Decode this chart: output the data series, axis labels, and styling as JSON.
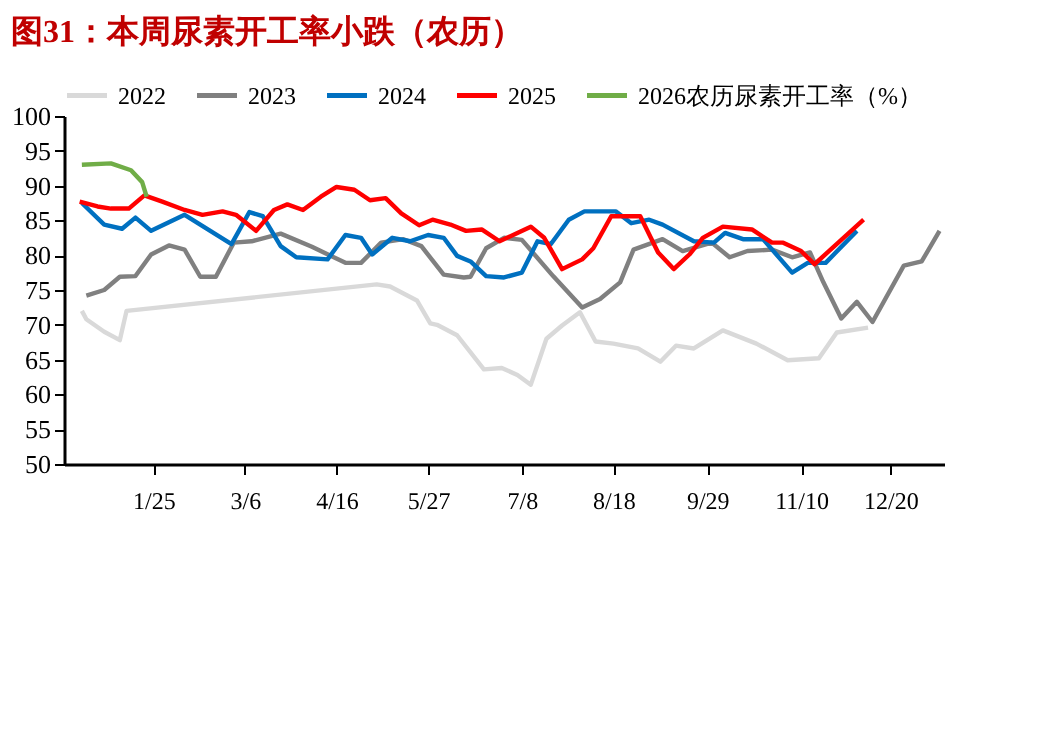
{
  "chart_data": {
    "type": "line",
    "title": "图31：本周尿素开工率小跌（农历）",
    "xlim": [
      "2023-12-16",
      "2025-01-13"
    ],
    "xticks": [
      {
        "value": "2024-01-25",
        "label": "1/25"
      },
      {
        "value": "2024-03-06",
        "label": "3/6"
      },
      {
        "value": "2024-04-16",
        "label": "4/16"
      },
      {
        "value": "2024-05-27",
        "label": "5/27"
      },
      {
        "value": "2024-07-08",
        "label": "7/8"
      },
      {
        "value": "2024-08-18",
        "label": "8/18"
      },
      {
        "value": "2024-09-29",
        "label": "9/29"
      },
      {
        "value": "2024-11-10",
        "label": "11/10"
      },
      {
        "value": "2024-12-20",
        "label": "12/20"
      }
    ],
    "ylim": [
      50,
      100
    ],
    "yticks": [
      50,
      55,
      60,
      65,
      70,
      75,
      80,
      85,
      90,
      95,
      100
    ],
    "grid": false,
    "legend": "top",
    "line_style": "solid",
    "marker": "none",
    "series": [
      {
        "name": "2022",
        "color": "#d9d9d9",
        "x": [
          "2023-12-24",
          "2023-12-26",
          "2024-01-03",
          "2024-01-10",
          "2024-01-13",
          "2024-05-04",
          "2024-05-10",
          "2024-05-22",
          "2024-05-28",
          "2024-05-31",
          "2024-06-09",
          "2024-06-21",
          "2024-06-29",
          "2024-07-06",
          "2024-07-12",
          "2024-07-19",
          "2024-07-26",
          "2024-08-03",
          "2024-08-10",
          "2024-08-18",
          "2024-08-29",
          "2024-09-08",
          "2024-09-15",
          "2024-09-23",
          "2024-10-06",
          "2024-10-21",
          "2024-11-04",
          "2024-11-18",
          "2024-11-26",
          "2024-12-10"
        ],
        "values": [
          72,
          70.8,
          69,
          67.8,
          72,
          75.8,
          75.5,
          73.5,
          70.2,
          70,
          68.5,
          63.6,
          63.8,
          62.8,
          61.4,
          68,
          69.9,
          71.8,
          67.6,
          67.3,
          66.6,
          64.7,
          67,
          66.6,
          69.2,
          67.3,
          64.9,
          65.2,
          68.9,
          69.6
        ]
      },
      {
        "name": "2023",
        "color": "#808080",
        "x": [
          "2023-12-26",
          "2024-01-03",
          "2024-01-10",
          "2024-01-17",
          "2024-01-24",
          "2024-02-01",
          "2024-02-08",
          "2024-02-15",
          "2024-02-22",
          "2024-03-01",
          "2024-03-09",
          "2024-03-22",
          "2024-04-05",
          "2024-04-20",
          "2024-04-27",
          "2024-05-06",
          "2024-05-16",
          "2024-05-24",
          "2024-06-03",
          "2024-06-12",
          "2024-06-15",
          "2024-06-22",
          "2024-06-30",
          "2024-07-08",
          "2024-07-22",
          "2024-08-04",
          "2024-08-12",
          "2024-08-21",
          "2024-08-27",
          "2024-09-09",
          "2024-09-18",
          "2024-10-01",
          "2024-10-09",
          "2024-10-17",
          "2024-10-28",
          "2024-11-06",
          "2024-11-14",
          "2024-11-20",
          "2024-11-28",
          "2024-12-05",
          "2024-12-12",
          "2024-12-26",
          "2025-01-03",
          "2025-01-11"
        ],
        "values": [
          74.2,
          75,
          76.9,
          77,
          80.1,
          81.4,
          80.8,
          76.9,
          76.9,
          81.8,
          82,
          83.1,
          81.2,
          78.9,
          78.9,
          81.8,
          82.3,
          81.3,
          77.2,
          76.8,
          76.9,
          81,
          82.5,
          82.2,
          77,
          72.5,
          73.7,
          76.1,
          80.8,
          82.3,
          80.6,
          81.8,
          79.7,
          80.6,
          80.8,
          79.7,
          80.4,
          76.1,
          70.9,
          73.3,
          70.4,
          78.5,
          79.1,
          83.5
        ]
      },
      {
        "name": "2024",
        "color": "#0070c0",
        "x": [
          "2023-12-24",
          "2024-01-03",
          "2024-01-11",
          "2024-01-17",
          "2024-01-24",
          "2024-02-08",
          "2024-02-29",
          "2024-03-08",
          "2024-03-14",
          "2024-03-22",
          "2024-03-29",
          "2024-04-12",
          "2024-04-20",
          "2024-04-27",
          "2024-05-02",
          "2024-05-11",
          "2024-05-19",
          "2024-05-27",
          "2024-06-03",
          "2024-06-09",
          "2024-06-15",
          "2024-06-22",
          "2024-06-30",
          "2024-07-08",
          "2024-07-15",
          "2024-07-21",
          "2024-07-29",
          "2024-08-05",
          "2024-08-19",
          "2024-08-26",
          "2024-09-03",
          "2024-09-09",
          "2024-09-23",
          "2024-10-02",
          "2024-10-07",
          "2024-10-15",
          "2024-10-24",
          "2024-11-06",
          "2024-11-13",
          "2024-11-21",
          "2024-12-05"
        ],
        "values": [
          87.5,
          84.4,
          83.8,
          85.4,
          83.5,
          85.8,
          81.6,
          86.2,
          85.6,
          81.3,
          79.7,
          79.4,
          82.9,
          82.5,
          80.1,
          82.5,
          82,
          82.9,
          82.5,
          79.9,
          79.1,
          77,
          76.8,
          77.5,
          82,
          81.6,
          85.1,
          86.3,
          86.3,
          84.6,
          85.1,
          84.4,
          82,
          81.8,
          83.2,
          82.3,
          82.3,
          77.5,
          78.9,
          78.9,
          83.5
        ]
      },
      {
        "name": "2025",
        "color": "#ff0000",
        "x": [
          "2023-12-23",
          "2023-12-31",
          "2024-01-06",
          "2024-01-14",
          "2024-01-21",
          "2024-01-29",
          "2024-02-08",
          "2024-02-16",
          "2024-02-25",
          "2024-03-02",
          "2024-03-11",
          "2024-03-19",
          "2024-03-25",
          "2024-04-01",
          "2024-04-09",
          "2024-04-16",
          "2024-04-24",
          "2024-05-01",
          "2024-05-08",
          "2024-05-15",
          "2024-05-23",
          "2024-05-29",
          "2024-06-06",
          "2024-06-13",
          "2024-06-20",
          "2024-06-28",
          "2024-07-06",
          "2024-07-12",
          "2024-07-18",
          "2024-07-26",
          "2024-08-04",
          "2024-08-09",
          "2024-08-17",
          "2024-08-30",
          "2024-09-07",
          "2024-09-14",
          "2024-09-21",
          "2024-09-27",
          "2024-10-06",
          "2024-10-19",
          "2024-10-28",
          "2024-11-02",
          "2024-11-10",
          "2024-11-16",
          "2024-12-08"
        ],
        "values": [
          87.7,
          87,
          86.7,
          86.7,
          88.6,
          87.7,
          86.5,
          85.8,
          86.3,
          85.8,
          83.5,
          86.5,
          87.3,
          86.5,
          88.4,
          89.8,
          89.4,
          87.9,
          88.2,
          86,
          84.3,
          85.1,
          84.4,
          83.5,
          83.7,
          82,
          83.2,
          84.1,
          82.5,
          78,
          79.4,
          81,
          85.6,
          85.6,
          80.4,
          78,
          80.1,
          82.5,
          84.1,
          83.7,
          81.8,
          81.8,
          80.6,
          78.7,
          85.1
        ]
      },
      {
        "name": "2026农历尿素开工率（%）",
        "color": "#70ad47",
        "x": [
          "2023-12-24",
          "2024-01-06",
          "2024-01-15",
          "2024-01-20",
          "2024-01-22"
        ],
        "values": [
          93,
          93.2,
          92.2,
          90.5,
          88.4
        ]
      }
    ]
  }
}
